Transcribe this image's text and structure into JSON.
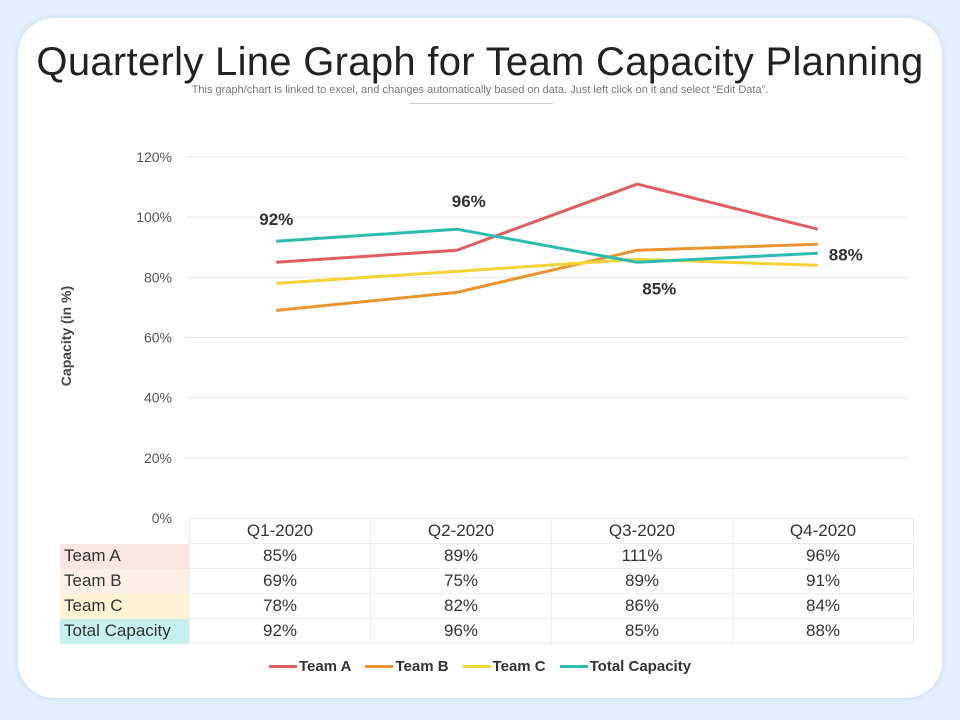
{
  "title": "Quarterly Line Graph for Team Capacity Planning",
  "subtitle": "This graph/chart is linked to excel, and changes automatically based on data. Just left click on it and select “Edit Data”.",
  "chart_data": {
    "type": "line",
    "ylabel": "Capacity (in %)",
    "ylim": [
      0,
      120
    ],
    "yticks": [
      "0%",
      "20%",
      "40%",
      "60%",
      "80%",
      "100%",
      "120%"
    ],
    "categories": [
      "Q1-2020",
      "Q2-2020",
      "Q3-2020",
      "Q4-2020"
    ],
    "grid": true,
    "legend": "bottom",
    "series": [
      {
        "name": "Team A",
        "values": [
          85,
          89,
          111,
          96
        ],
        "display": [
          "85%",
          "89%",
          "111%",
          "96%"
        ],
        "color": "#df5f5f",
        "bg": "#fbe4e4"
      },
      {
        "name": "Team B",
        "values": [
          69,
          75,
          89,
          91
        ],
        "display": [
          "69%",
          "75%",
          "89%",
          "91%"
        ],
        "color": "#e9952f",
        "bg": "#fdefe5"
      },
      {
        "name": "Team C",
        "values": [
          78,
          82,
          86,
          84
        ],
        "display": [
          "78%",
          "82%",
          "86%",
          "84%"
        ],
        "color": "#f5d235",
        "bg": "#fdf2d4"
      },
      {
        "name": "Total Capacity",
        "values": [
          92,
          96,
          85,
          88
        ],
        "display": [
          "92%",
          "96%",
          "85%",
          "88%"
        ],
        "color": "#2cbcae",
        "bg": "#c5f0ed",
        "data_labels": [
          "92%",
          "96%",
          "85%",
          "88%"
        ]
      }
    ]
  }
}
